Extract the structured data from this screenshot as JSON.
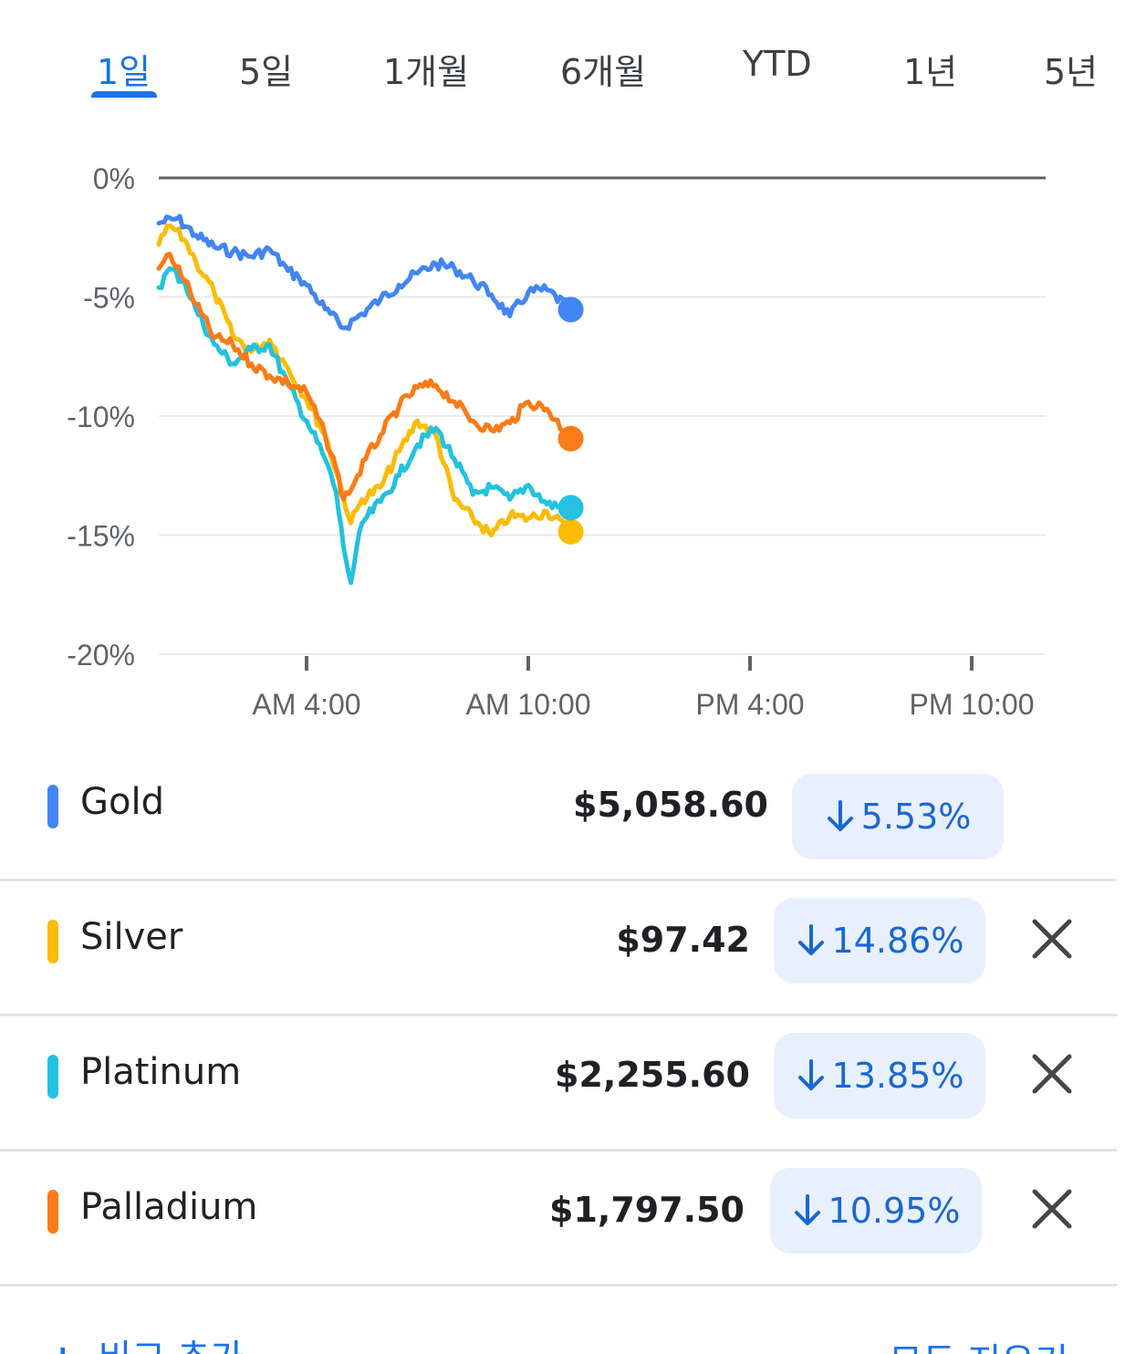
{
  "tabs": [
    {
      "label": "1일",
      "active": true
    },
    {
      "label": "5일",
      "active": false
    },
    {
      "label": "1개월",
      "active": false
    },
    {
      "label": "6개월",
      "active": false
    },
    {
      "label": "YTD",
      "active": false
    },
    {
      "label": "1년",
      "active": false
    },
    {
      "label": "5년",
      "active": false
    }
  ],
  "chart_data": {
    "type": "line",
    "title": "",
    "xlabel": "",
    "ylabel": "",
    "y_unit": "%",
    "ylim": [
      -20,
      0
    ],
    "y_ticks": [
      0,
      -5,
      -10,
      -15,
      -20
    ],
    "y_tick_labels": [
      "0%",
      "-5%",
      "-10%",
      "-15%",
      "-20%"
    ],
    "x_ticks": [
      "AM 4:00",
      "AM 10:00",
      "PM 4:00",
      "PM 10:00"
    ],
    "x_range_hours": [
      0,
      24
    ],
    "x_tick_hours": [
      4,
      10,
      16,
      22
    ],
    "grid": true,
    "legend": "rows-below",
    "series": [
      {
        "name": "Gold",
        "color": "#4285f4",
        "x": [
          0,
          0.5,
          1,
          1.5,
          2,
          2.5,
          3,
          3.5,
          3.8,
          4,
          4.5,
          5,
          5.5,
          6,
          6.5,
          7,
          7.5,
          8,
          8.5,
          9,
          9.5,
          10,
          10.5,
          11.15
        ],
        "y": [
          -1.9,
          -1.7,
          -2.4,
          -2.9,
          -3.1,
          -3.3,
          -3.0,
          -3.9,
          -4.2,
          -4.5,
          -5.5,
          -6.3,
          -5.7,
          -5.1,
          -4.5,
          -4.0,
          -3.6,
          -3.8,
          -4.3,
          -4.9,
          -5.8,
          -4.8,
          -4.7,
          -5.53
        ]
      },
      {
        "name": "Silver",
        "color": "#fbbc04",
        "x": [
          0,
          0.3,
          0.7,
          1,
          1.5,
          2,
          2.5,
          3,
          3.5,
          4,
          4.5,
          4.9,
          5.2,
          5.5,
          6,
          6.5,
          7,
          7.5,
          8,
          8.5,
          9,
          9.5,
          10,
          10.5,
          11.15
        ],
        "y": [
          -2.8,
          -2.0,
          -2.6,
          -3.5,
          -4.8,
          -6.6,
          -7.3,
          -6.8,
          -8.0,
          -9.3,
          -10.8,
          -12.8,
          -14.5,
          -13.5,
          -13.0,
          -11.5,
          -10.2,
          -10.8,
          -13.5,
          -14.3,
          -15.0,
          -14.2,
          -14.3,
          -14.0,
          -14.86
        ]
      },
      {
        "name": "Platinum",
        "color": "#24c1e0",
        "x": [
          0,
          0.3,
          0.7,
          1,
          1.5,
          2,
          2.5,
          3,
          3.5,
          4,
          4.5,
          4.8,
          5,
          5.2,
          5.5,
          6,
          6.5,
          7,
          7.5,
          8,
          8.5,
          9,
          9.5,
          10,
          10.5,
          11.15
        ],
        "y": [
          -4.6,
          -3.8,
          -4.4,
          -5.5,
          -7.0,
          -7.8,
          -7.2,
          -7.0,
          -8.7,
          -10.2,
          -11.8,
          -13.2,
          -15.5,
          -17.0,
          -14.5,
          -13.6,
          -12.5,
          -11.2,
          -10.5,
          -11.8,
          -13.3,
          -13.0,
          -13.5,
          -12.9,
          -13.7,
          -13.85
        ]
      },
      {
        "name": "Palladium",
        "color": "#fa7b17",
        "x": [
          0,
          0.3,
          0.7,
          1,
          1.5,
          2,
          2.5,
          3,
          3.5,
          4,
          4.5,
          4.8,
          5,
          5.3,
          5.6,
          6,
          6.5,
          7,
          7.5,
          8,
          8.5,
          9,
          9.5,
          10,
          10.5,
          11.15
        ],
        "y": [
          -3.8,
          -3.2,
          -4.3,
          -5.3,
          -6.7,
          -7.0,
          -7.8,
          -8.3,
          -8.6,
          -9.0,
          -10.8,
          -12.2,
          -13.5,
          -12.8,
          -11.8,
          -10.8,
          -9.6,
          -8.8,
          -8.7,
          -9.4,
          -10.2,
          -10.6,
          -10.3,
          -9.4,
          -9.7,
          -10.95
        ]
      }
    ]
  },
  "rows": [
    {
      "name": "Gold",
      "color": "#4285f4",
      "price": "$5,058.60",
      "change": "5.53%",
      "removable": false
    },
    {
      "name": "Silver",
      "color": "#fbbc04",
      "price": "$97.42",
      "change": "14.86%",
      "removable": true
    },
    {
      "name": "Platinum",
      "color": "#24c1e0",
      "price": "$2,255.60",
      "change": "13.85%",
      "removable": true
    },
    {
      "name": "Palladium",
      "color": "#fa7b17",
      "price": "$1,797.50",
      "change": "10.95%",
      "removable": true
    }
  ],
  "footer": {
    "add_icon": "+",
    "add_label": "비교 추가",
    "clear_label": "모두 지우기"
  },
  "icons": {
    "change": "arrow-down-icon",
    "remove": "close-icon"
  }
}
